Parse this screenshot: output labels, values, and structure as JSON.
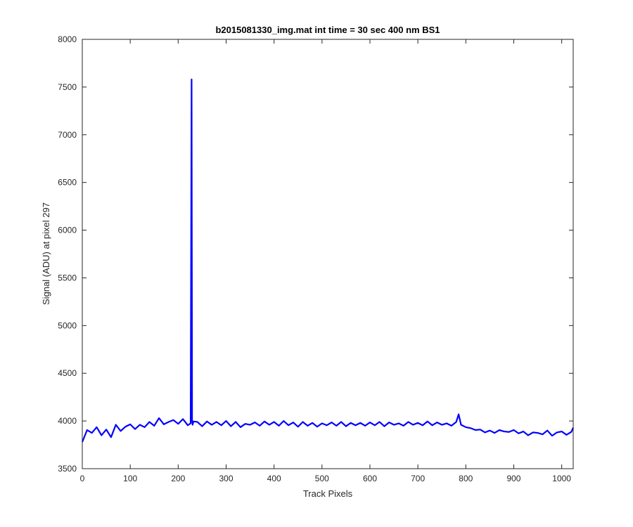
{
  "chart_data": {
    "type": "line",
    "title": "b2015081330_img.mat int time = 30 sec  400 nm BS1",
    "xlabel": "Track Pixels",
    "ylabel": "Signal (ADU) at pixel 297",
    "xlim": [
      0,
      1024
    ],
    "ylim": [
      3500,
      8000
    ],
    "xticks": [
      0,
      100,
      200,
      300,
      400,
      500,
      600,
      700,
      800,
      900,
      1000
    ],
    "yticks": [
      3500,
      4000,
      4500,
      5000,
      5500,
      6000,
      6500,
      7000,
      7500,
      8000
    ],
    "grid": false,
    "series": [
      {
        "color": "#0000ff",
        "x": [
          0,
          10,
          20,
          30,
          40,
          50,
          60,
          70,
          80,
          90,
          100,
          110,
          120,
          130,
          140,
          150,
          160,
          170,
          180,
          190,
          200,
          210,
          220,
          226,
          228,
          229,
          230,
          232,
          240,
          250,
          260,
          270,
          280,
          290,
          300,
          310,
          320,
          330,
          340,
          350,
          360,
          370,
          380,
          390,
          400,
          410,
          420,
          430,
          440,
          450,
          460,
          470,
          480,
          490,
          500,
          510,
          520,
          530,
          540,
          550,
          560,
          570,
          580,
          590,
          600,
          610,
          620,
          630,
          640,
          650,
          660,
          670,
          680,
          690,
          700,
          710,
          720,
          730,
          740,
          750,
          760,
          770,
          780,
          785,
          790,
          800,
          810,
          820,
          830,
          840,
          850,
          860,
          870,
          880,
          890,
          900,
          910,
          920,
          930,
          940,
          950,
          960,
          970,
          980,
          990,
          1000,
          1010,
          1020,
          1024
        ],
        "y": [
          3780,
          3905,
          3875,
          3935,
          3850,
          3910,
          3830,
          3960,
          3895,
          3940,
          3965,
          3915,
          3960,
          3935,
          3990,
          3950,
          4030,
          3965,
          3990,
          4010,
          3970,
          4020,
          3955,
          3975,
          7580,
          4010,
          3960,
          3995,
          3990,
          3945,
          3995,
          3960,
          3990,
          3955,
          4000,
          3945,
          3990,
          3935,
          3970,
          3960,
          3985,
          3950,
          3995,
          3960,
          3990,
          3950,
          4000,
          3955,
          3985,
          3940,
          3990,
          3950,
          3980,
          3940,
          3975,
          3955,
          3985,
          3950,
          3990,
          3945,
          3980,
          3955,
          3980,
          3950,
          3985,
          3955,
          3990,
          3945,
          3985,
          3960,
          3975,
          3950,
          3990,
          3960,
          3980,
          3955,
          3995,
          3955,
          3985,
          3960,
          3975,
          3950,
          3990,
          4070,
          3960,
          3935,
          3925,
          3905,
          3910,
          3880,
          3900,
          3875,
          3905,
          3890,
          3885,
          3905,
          3870,
          3890,
          3850,
          3880,
          3875,
          3860,
          3900,
          3845,
          3880,
          3890,
          3855,
          3885,
          3930
        ]
      }
    ]
  }
}
